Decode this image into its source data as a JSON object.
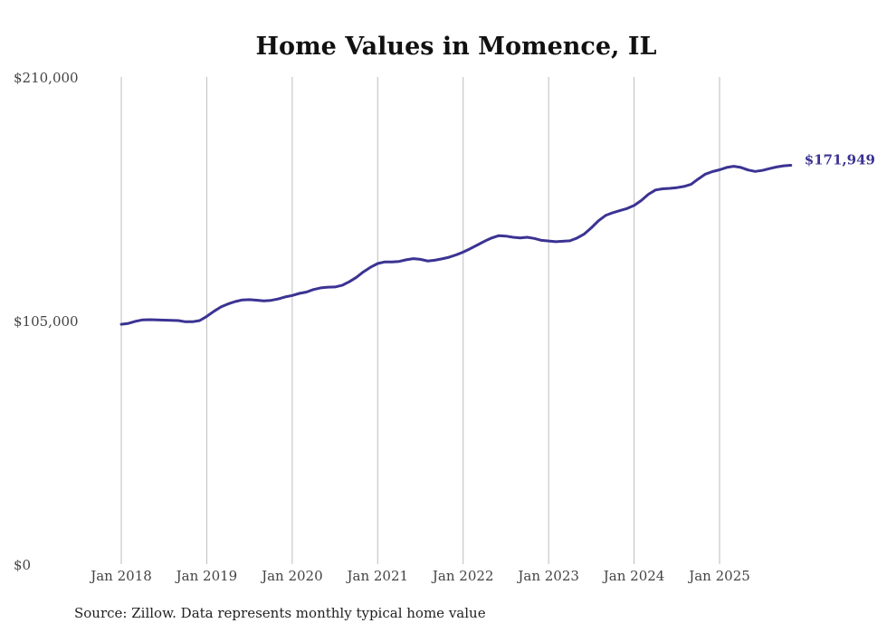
{
  "chart_data": {
    "type": "line",
    "title": "Home Values in Momence, IL",
    "xlabel": "",
    "ylabel": "",
    "ylim": [
      0,
      210000
    ],
    "y_ticks": [
      {
        "value": 0,
        "label": "$0"
      },
      {
        "value": 105000,
        "label": "$105,000"
      },
      {
        "value": 210000,
        "label": "$210,000"
      }
    ],
    "x_ticks": [
      {
        "value": "2018-01",
        "label": "Jan 2018"
      },
      {
        "value": "2019-01",
        "label": "Jan 2019"
      },
      {
        "value": "2020-01",
        "label": "Jan 2020"
      },
      {
        "value": "2021-01",
        "label": "Jan 2021"
      },
      {
        "value": "2022-01",
        "label": "Jan 2022"
      },
      {
        "value": "2023-01",
        "label": "Jan 2023"
      },
      {
        "value": "2024-01",
        "label": "Jan 2024"
      },
      {
        "value": "2025-01",
        "label": "Jan 2025"
      }
    ],
    "grid": "vertical",
    "series": [
      {
        "name": "Typical home value",
        "color": "#3b3393",
        "end_label": "$171,949",
        "points": [
          [
            "2018-01",
            103400
          ],
          [
            "2018-02",
            103800
          ],
          [
            "2018-03",
            104700
          ],
          [
            "2018-04",
            105300
          ],
          [
            "2018-05",
            105400
          ],
          [
            "2018-06",
            105300
          ],
          [
            "2018-07",
            105200
          ],
          [
            "2018-08",
            105100
          ],
          [
            "2018-09",
            105000
          ],
          [
            "2018-10",
            104500
          ],
          [
            "2018-11",
            104500
          ],
          [
            "2018-12",
            105000
          ],
          [
            "2019-01",
            106800
          ],
          [
            "2019-02",
            109000
          ],
          [
            "2019-03",
            110900
          ],
          [
            "2019-04",
            112200
          ],
          [
            "2019-05",
            113200
          ],
          [
            "2019-06",
            113900
          ],
          [
            "2019-07",
            114000
          ],
          [
            "2019-08",
            113800
          ],
          [
            "2019-09",
            113500
          ],
          [
            "2019-10",
            113700
          ],
          [
            "2019-11",
            114300
          ],
          [
            "2019-12",
            115200
          ],
          [
            "2020-01",
            115800
          ],
          [
            "2020-02",
            116700
          ],
          [
            "2020-03",
            117300
          ],
          [
            "2020-04",
            118400
          ],
          [
            "2020-05",
            119100
          ],
          [
            "2020-06",
            119400
          ],
          [
            "2020-07",
            119500
          ],
          [
            "2020-08",
            120200
          ],
          [
            "2020-09",
            121700
          ],
          [
            "2020-10",
            123600
          ],
          [
            "2020-11",
            126000
          ],
          [
            "2020-12",
            128000
          ],
          [
            "2021-01",
            129600
          ],
          [
            "2021-02",
            130300
          ],
          [
            "2021-03",
            130300
          ],
          [
            "2021-04",
            130500
          ],
          [
            "2021-05",
            131200
          ],
          [
            "2021-06",
            131700
          ],
          [
            "2021-07",
            131400
          ],
          [
            "2021-08",
            130700
          ],
          [
            "2021-09",
            131000
          ],
          [
            "2021-10",
            131600
          ],
          [
            "2021-11",
            132300
          ],
          [
            "2021-12",
            133300
          ],
          [
            "2022-01",
            134500
          ],
          [
            "2022-02",
            136000
          ],
          [
            "2022-03",
            137600
          ],
          [
            "2022-04",
            139200
          ],
          [
            "2022-05",
            140600
          ],
          [
            "2022-06",
            141600
          ],
          [
            "2022-07",
            141400
          ],
          [
            "2022-08",
            140900
          ],
          [
            "2022-09",
            140600
          ],
          [
            "2022-10",
            140900
          ],
          [
            "2022-11",
            140400
          ],
          [
            "2022-12",
            139600
          ],
          [
            "2023-01",
            139300
          ],
          [
            "2023-02",
            139000
          ],
          [
            "2023-03",
            139200
          ],
          [
            "2023-04",
            139400
          ],
          [
            "2023-05",
            140600
          ],
          [
            "2023-06",
            142300
          ],
          [
            "2023-07",
            145000
          ],
          [
            "2023-08",
            148000
          ],
          [
            "2023-09",
            150300
          ],
          [
            "2023-10",
            151500
          ],
          [
            "2023-11",
            152400
          ],
          [
            "2023-12",
            153300
          ],
          [
            "2024-01",
            154600
          ],
          [
            "2024-02",
            156700
          ],
          [
            "2024-03",
            159400
          ],
          [
            "2024-04",
            161300
          ],
          [
            "2024-05",
            161800
          ],
          [
            "2024-06",
            162000
          ],
          [
            "2024-07",
            162300
          ],
          [
            "2024-08",
            162800
          ],
          [
            "2024-09",
            163700
          ],
          [
            "2024-10",
            166000
          ],
          [
            "2024-11",
            168100
          ],
          [
            "2024-12",
            169200
          ],
          [
            "2025-01",
            170000
          ],
          [
            "2025-02",
            171000
          ],
          [
            "2025-03",
            171500
          ],
          [
            "2025-04",
            171000
          ],
          [
            "2025-05",
            169900
          ],
          [
            "2025-06",
            169300
          ],
          [
            "2025-07",
            169700
          ],
          [
            "2025-08",
            170500
          ],
          [
            "2025-09",
            171200
          ],
          [
            "2025-10",
            171700
          ],
          [
            "2025-11",
            171949
          ]
        ]
      }
    ]
  },
  "footer": {
    "source": "Source: Zillow. Data represents monthly typical home value"
  }
}
